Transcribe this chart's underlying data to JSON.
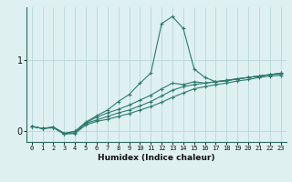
{
  "xlabel": "Humidex (Indice chaleur)",
  "x_values": [
    0,
    1,
    2,
    3,
    4,
    5,
    6,
    7,
    8,
    9,
    10,
    11,
    12,
    13,
    14,
    15,
    16,
    17,
    18,
    19,
    20,
    21,
    22,
    23
  ],
  "line_peak": [
    0.07,
    0.04,
    0.06,
    -0.03,
    0.0,
    0.13,
    0.22,
    0.3,
    0.42,
    0.52,
    0.68,
    0.82,
    1.52,
    1.62,
    1.45,
    0.88,
    0.76,
    0.7,
    0.72,
    0.74,
    0.76,
    0.78,
    0.8,
    0.82
  ],
  "line_mid1": [
    0.07,
    0.04,
    0.06,
    -0.03,
    0.0,
    0.12,
    0.2,
    0.26,
    0.31,
    0.37,
    0.44,
    0.51,
    0.6,
    0.68,
    0.66,
    0.7,
    0.68,
    0.7,
    0.71,
    0.74,
    0.76,
    0.78,
    0.8,
    0.82
  ],
  "line_low1": [
    0.07,
    0.04,
    0.06,
    -0.03,
    -0.02,
    0.11,
    0.16,
    0.21,
    0.26,
    0.3,
    0.36,
    0.42,
    0.5,
    0.58,
    0.63,
    0.66,
    0.68,
    0.7,
    0.72,
    0.74,
    0.76,
    0.78,
    0.8,
    0.81
  ],
  "line_low2": [
    0.07,
    0.04,
    0.05,
    -0.04,
    -0.03,
    0.09,
    0.14,
    0.17,
    0.21,
    0.25,
    0.3,
    0.35,
    0.41,
    0.48,
    0.54,
    0.6,
    0.63,
    0.66,
    0.68,
    0.71,
    0.73,
    0.76,
    0.78,
    0.79
  ],
  "bg_color": "#dff0f0",
  "line_color": "#2e7b6e",
  "grid_color": "#b8d8d8",
  "yticks": [
    0,
    1
  ],
  "ylim": [
    -0.15,
    1.75
  ],
  "xlim": [
    -0.5,
    23.5
  ]
}
